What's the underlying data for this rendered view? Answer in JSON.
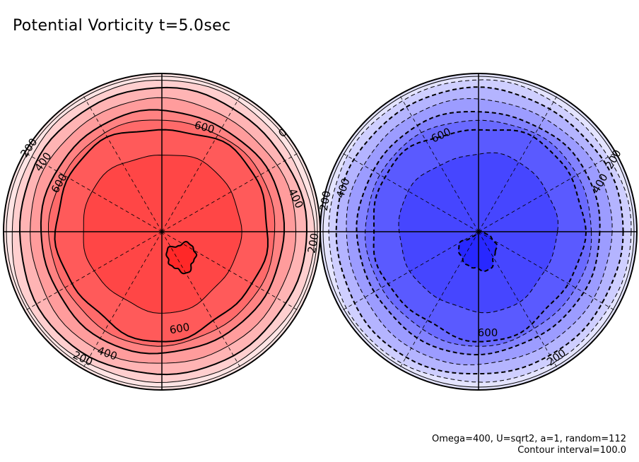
{
  "chart_data": {
    "type": "contour",
    "title": "Potential Vorticity t=5.0sec",
    "annotations": [
      "Omega=400, U=sqrt2, a=1, random=112",
      "Contour interval=100.0"
    ],
    "contour_interval": 100.0,
    "panels": [
      {
        "name": "northern-hemisphere",
        "projection": "polar",
        "line_style": "solid",
        "levels": [
          0,
          100,
          200,
          300,
          400,
          500,
          600,
          700,
          800
        ],
        "fill_colors": [
          "#ffe4e4",
          "#ffcfcf",
          "#ffb4b4",
          "#ff9c9c",
          "#ff8282",
          "#ff6a6a",
          "#ff5a5a",
          "#ff4646",
          "#ff2828"
        ],
        "contour_labels": [
          "0",
          "200",
          "400",
          "600",
          "200",
          "400",
          "600",
          "200",
          "400",
          "600"
        ]
      },
      {
        "name": "southern-hemisphere",
        "projection": "polar",
        "line_style": "dashed",
        "levels": [
          0,
          100,
          200,
          300,
          400,
          500,
          600,
          700,
          800
        ],
        "fill_colors": [
          "#e4e4ff",
          "#cfcfff",
          "#b4b4ff",
          "#9c9cff",
          "#8282ff",
          "#6a6aff",
          "#5a5aff",
          "#4646ff",
          "#2828ff"
        ],
        "contour_labels": [
          "200",
          "400",
          "600",
          "200",
          "400",
          "600",
          "200"
        ]
      }
    ]
  }
}
